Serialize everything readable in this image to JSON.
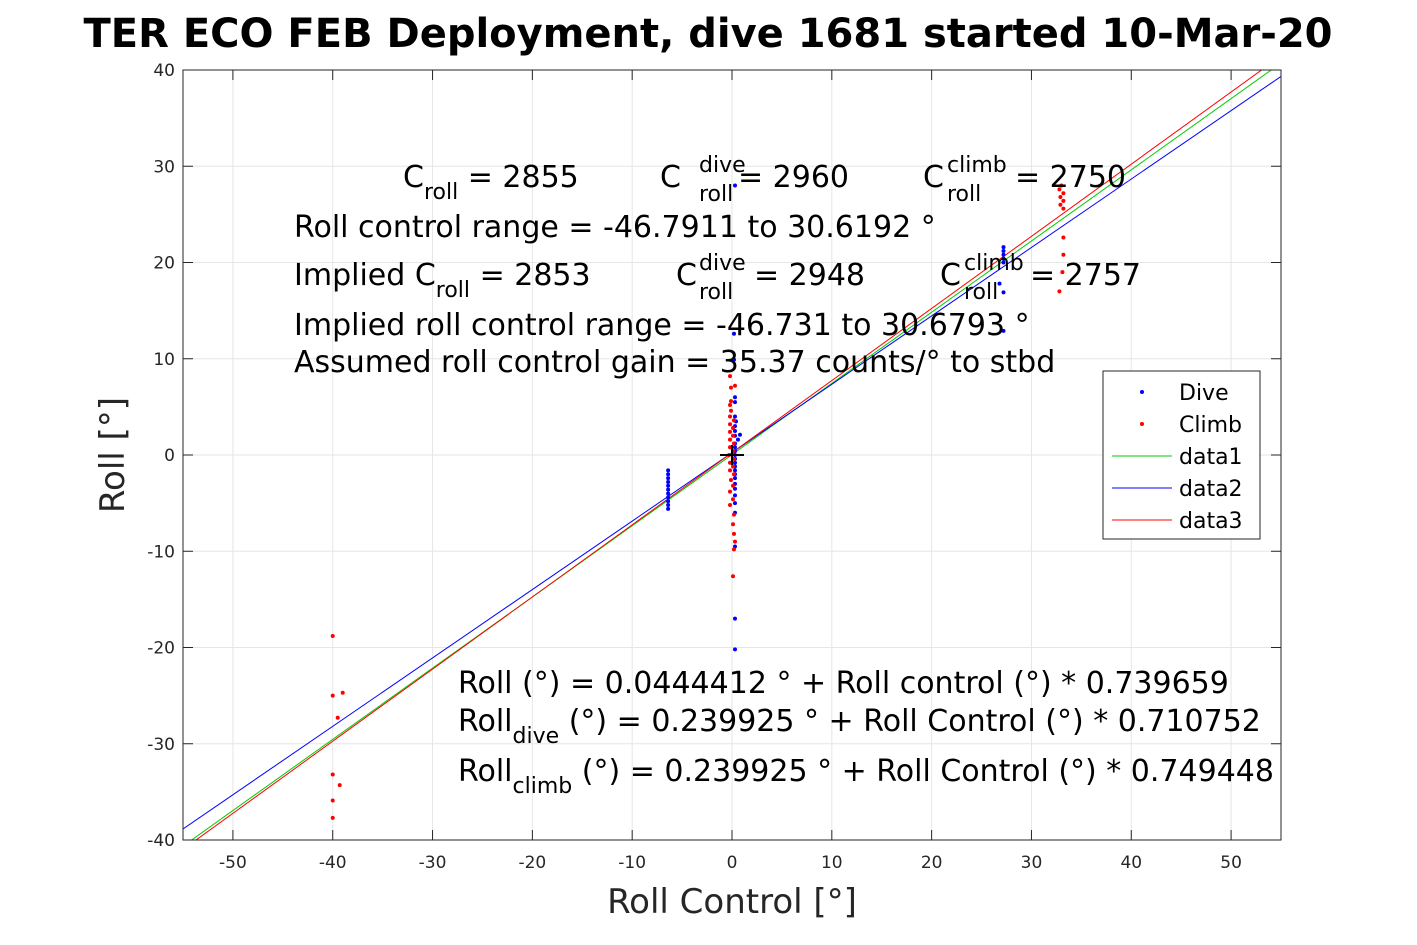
{
  "chart_data": {
    "type": "scatter",
    "title": "TER ECO FEB Deployment, dive 1681 started 10-Mar-20",
    "xlabel": "Roll Control [°]",
    "ylabel": "Roll [°]",
    "xlim": [
      -55,
      55
    ],
    "ylim": [
      -40,
      40
    ],
    "xticks": [
      -50,
      -40,
      -30,
      -20,
      -10,
      0,
      10,
      20,
      30,
      40,
      50
    ],
    "yticks": [
      -40,
      -30,
      -20,
      -10,
      0,
      10,
      20,
      30,
      40
    ],
    "xtick_labels": [
      "-50",
      "-40",
      "-30",
      "-20",
      "-10",
      "0",
      "10",
      "20",
      "30",
      "40",
      "50"
    ],
    "ytick_labels": [
      "-40",
      "-30",
      "-20",
      "-10",
      "0",
      "10",
      "20",
      "30",
      "40"
    ],
    "grid": true,
    "legend_position": "right",
    "series": [
      {
        "name": "Dive",
        "kind": "points",
        "color": "#0000ff",
        "points": [
          [
            -6.4,
            -1.6
          ],
          [
            -6.4,
            -2.0
          ],
          [
            -6.4,
            -2.4
          ],
          [
            -6.4,
            -2.8
          ],
          [
            -6.4,
            -3.2
          ],
          [
            -6.4,
            -3.6
          ],
          [
            -6.4,
            -4.0
          ],
          [
            -6.4,
            -4.4
          ],
          [
            -6.4,
            -4.8
          ],
          [
            -6.4,
            -5.2
          ],
          [
            -6.4,
            -5.6
          ],
          [
            0.3,
            28.0
          ],
          [
            0.2,
            12.6
          ],
          [
            0.2,
            9.9
          ],
          [
            0.3,
            6.0
          ],
          [
            0.3,
            5.5
          ],
          [
            0.3,
            4.0
          ],
          [
            0.4,
            3.5
          ],
          [
            0.3,
            3.0
          ],
          [
            0.3,
            2.5
          ],
          [
            0.3,
            2.0
          ],
          [
            0.8,
            2.1
          ],
          [
            0.6,
            1.6
          ],
          [
            0.3,
            1.2
          ],
          [
            0.3,
            0.8
          ],
          [
            0.3,
            0.4
          ],
          [
            0.3,
            0.0
          ],
          [
            0.3,
            -0.4
          ],
          [
            0.3,
            -0.8
          ],
          [
            0.3,
            -1.2
          ],
          [
            0.3,
            -1.6
          ],
          [
            0.3,
            -2.0
          ],
          [
            0.3,
            -2.4
          ],
          [
            0.3,
            -3.0
          ],
          [
            0.3,
            -3.5
          ],
          [
            0.3,
            -4.2
          ],
          [
            0.3,
            -5.0
          ],
          [
            0.3,
            -6.0
          ],
          [
            0.3,
            -9.5
          ],
          [
            0.3,
            -17.0
          ],
          [
            0.3,
            -20.2
          ],
          [
            27.2,
            21.6
          ],
          [
            27.2,
            21.2
          ],
          [
            27.2,
            20.8
          ],
          [
            27.2,
            20.4
          ],
          [
            27.2,
            20.0
          ],
          [
            26.8,
            17.8
          ],
          [
            27.2,
            16.9
          ],
          [
            27.2,
            12.9
          ]
        ]
      },
      {
        "name": "Climb",
        "kind": "points",
        "color": "#ff0000",
        "points": [
          [
            -40.0,
            -18.8
          ],
          [
            -40.0,
            -25.0
          ],
          [
            -39.0,
            -24.7
          ],
          [
            -39.5,
            -27.3
          ],
          [
            -40.0,
            -33.2
          ],
          [
            -39.3,
            -34.3
          ],
          [
            -40.0,
            -35.9
          ],
          [
            -40.0,
            -37.7
          ],
          [
            -0.2,
            8.2
          ],
          [
            -0.1,
            7.0
          ],
          [
            0.3,
            7.2
          ],
          [
            -0.1,
            5.6
          ],
          [
            -0.2,
            5.2
          ],
          [
            -0.1,
            4.6
          ],
          [
            -0.2,
            4.0
          ],
          [
            0.2,
            3.6
          ],
          [
            -0.2,
            3.2
          ],
          [
            0.1,
            2.8
          ],
          [
            -0.2,
            2.4
          ],
          [
            0.1,
            2.0
          ],
          [
            -0.2,
            1.6
          ],
          [
            0.2,
            1.2
          ],
          [
            -0.2,
            0.8
          ],
          [
            0.1,
            0.4
          ],
          [
            -0.3,
            0.0
          ],
          [
            0.2,
            -0.4
          ],
          [
            -0.2,
            -0.8
          ],
          [
            0.1,
            -1.2
          ],
          [
            -0.2,
            -1.6
          ],
          [
            0.2,
            -2.0
          ],
          [
            -0.1,
            -2.6
          ],
          [
            0.1,
            -3.2
          ],
          [
            -0.2,
            -3.8
          ],
          [
            0.1,
            -4.6
          ],
          [
            -0.2,
            -5.2
          ],
          [
            0.2,
            -6.2
          ],
          [
            0.1,
            -7.2
          ],
          [
            0.2,
            -8.2
          ],
          [
            0.3,
            -9.0
          ],
          [
            0.2,
            -9.8
          ],
          [
            0.1,
            -12.6
          ],
          [
            33.0,
            28.0
          ],
          [
            32.8,
            27.6
          ],
          [
            33.2,
            27.2
          ],
          [
            32.9,
            26.8
          ],
          [
            33.2,
            26.4
          ],
          [
            32.9,
            26.0
          ],
          [
            33.2,
            25.6
          ],
          [
            33.2,
            22.6
          ],
          [
            33.2,
            20.8
          ],
          [
            33.1,
            19.0
          ],
          [
            32.8,
            17.0
          ]
        ]
      },
      {
        "name": "data1",
        "kind": "line",
        "color": "#00cc00",
        "intercept": 0.0444412,
        "slope": 0.739659
      },
      {
        "name": "data2",
        "kind": "line",
        "color": "#0000ff",
        "intercept": 0.239925,
        "slope": 0.710752
      },
      {
        "name": "data3",
        "kind": "line",
        "color": "#ff0000",
        "intercept": 0.239925,
        "slope": 0.749448
      }
    ],
    "origin_marker": {
      "x": 0,
      "y": 0,
      "color": "#000000"
    },
    "annotations": {
      "c_roll": {
        "main": "C",
        "sub": "roll",
        "value": " = 2855"
      },
      "c_roll_dive": {
        "main": "C",
        "sup": "dive",
        "sub": "roll",
        "value": " = 2960"
      },
      "c_roll_climb": {
        "main": "C",
        "sup": "climb",
        "sub": "roll",
        "value": " = 2750"
      },
      "range_line": "Roll control range = -46.7911 to 30.6192 °",
      "implied_c_roll": {
        "main": "Implied C",
        "sub": "roll",
        "value": " = 2853"
      },
      "implied_c_roll_dive": {
        "main": "C",
        "sup": "dive",
        "sub": "roll",
        "value": " = 2948"
      },
      "implied_c_roll_climb": {
        "main": "C",
        "sup": "climb",
        "sub": "roll",
        "value": " = 2757"
      },
      "implied_range_line": "Implied roll control range = -46.731 to 30.6793 °",
      "gain_line": "Assumed roll control gain = 35.37 counts/° to stbd",
      "fit_line": "Roll (°) = 0.0444412 ° + Roll control (°) * 0.739659",
      "fit_dive": {
        "main": "Roll",
        "sub": "dive",
        "value": " (°) = 0.239925 ° + Roll Control (°) * 0.710752"
      },
      "fit_climb": {
        "main": "Roll",
        "sub": "climb",
        "value": " (°) = 0.239925 ° + Roll Control (°) * 0.749448"
      }
    }
  }
}
